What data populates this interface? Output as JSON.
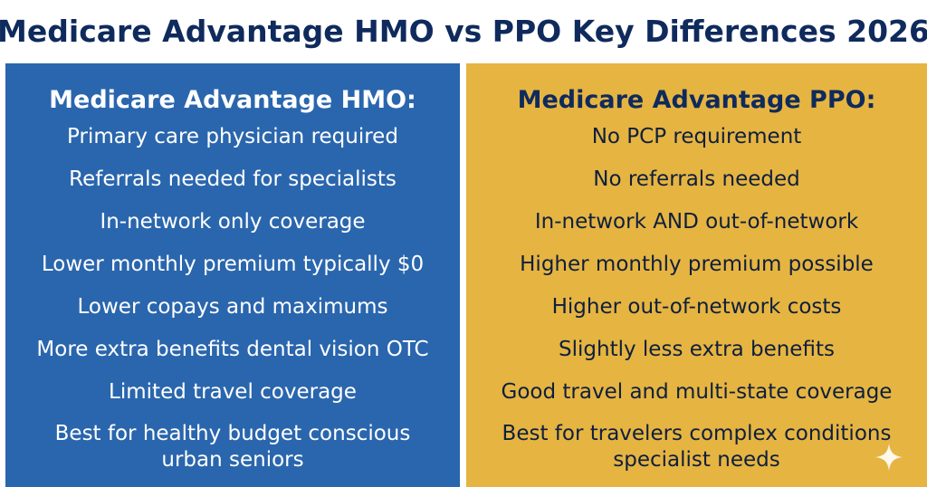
{
  "title": "Medicare Advantage HMO vs PPO Key Differences 2026",
  "colors": {
    "title": "#0f2a5c",
    "hmo_panel": "#2a66ad",
    "ppo_panel": "#e6b441",
    "hmo_text": "#ffffff",
    "ppo_text": "#0e1f3d"
  },
  "hmo": {
    "heading": "Medicare Advantage HMO:",
    "items": [
      "Primary care physician required",
      "Referrals needed for specialists",
      "In-network only coverage",
      "Lower monthly premium typically $0",
      "Lower copays and maximums",
      "More extra benefits dental vision OTC",
      "Limited travel coverage",
      "Best for healthy budget conscious urban seniors"
    ]
  },
  "ppo": {
    "heading": "Medicare Advantage PPO:",
    "items": [
      "No PCP requirement",
      "No referrals needed",
      "In-network AND out-of-network",
      "Higher monthly premium possible",
      "Higher out-of-network costs",
      "Slightly less extra benefits",
      "Good travel and multi-state coverage",
      "Best for travelers complex conditions specialist needs"
    ]
  },
  "watermark_icon": "sparkle-icon"
}
